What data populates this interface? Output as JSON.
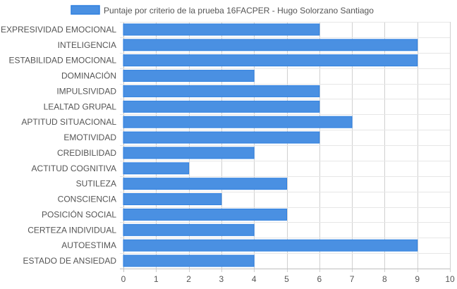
{
  "chart_data": {
    "type": "bar",
    "orientation": "horizontal",
    "title": "",
    "xlabel": "",
    "ylabel": "",
    "categories": [
      "EXPRESIVIDAD EMOCIONAL",
      "INTELIGENCIA",
      "ESTABILIDAD EMOCIONAL",
      "DOMINACIÓN",
      "IMPULSIVIDAD",
      "LEALTAD GRUPAL",
      "APTITUD SITUACIONAL",
      "EMOTIVIDAD",
      "CREDIBILIDAD",
      "ACTITUD COGNITIVA",
      "SUTILEZA",
      "CONSCIENCIA",
      "POSICIÓN SOCIAL",
      "CERTEZA INDIVIDUAL",
      "AUTOESTIMA",
      "ESTADO DE ANSIEDAD"
    ],
    "series": [
      {
        "name": "Puntaje por criterio de la prueba 16FACPER - Hugo Solorzano Santiago",
        "values": [
          6,
          9,
          9,
          4,
          6,
          6,
          7,
          6,
          4,
          2,
          5,
          3,
          5,
          4,
          9,
          4
        ],
        "color": "#4a90e2",
        "border_color": "#2f80e0"
      }
    ],
    "xlim": [
      0,
      10
    ],
    "xticks": [
      "0",
      "1",
      "2",
      "3",
      "4",
      "5",
      "6",
      "7",
      "8",
      "9",
      "10"
    ],
    "grid": true,
    "legend_position": "top"
  }
}
